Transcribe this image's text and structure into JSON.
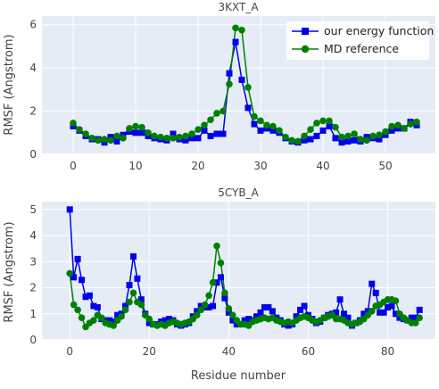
{
  "chart_data": [
    {
      "type": "line",
      "title": "3KXT_A",
      "xlabel": "",
      "ylabel": "RMSF (Angstrom)",
      "xlim": [
        -5,
        58
      ],
      "ylim": [
        0,
        6.4
      ],
      "xticks": [
        0,
        10,
        20,
        30,
        40,
        50
      ],
      "yticks": [
        0,
        2,
        4,
        6
      ],
      "grid": true,
      "legend_position": "top-right",
      "legend": [
        "our energy function",
        "MD reference"
      ],
      "series": [
        {
          "name": "our energy function",
          "color": "#0000ee",
          "marker": "square",
          "x": [
            0,
            1,
            2,
            3,
            4,
            5,
            6,
            7,
            8,
            9,
            10,
            11,
            12,
            13,
            14,
            15,
            16,
            17,
            18,
            19,
            20,
            21,
            22,
            23,
            24,
            25,
            26,
            27,
            28,
            29,
            30,
            31,
            32,
            33,
            34,
            35,
            36,
            37,
            38,
            39,
            40,
            41,
            42,
            43,
            44,
            45,
            46,
            47,
            48,
            49,
            50,
            51,
            52,
            53,
            54,
            55
          ],
          "y": [
            1.3,
            1.1,
            0.85,
            0.7,
            0.7,
            0.55,
            0.8,
            0.6,
            0.9,
            1.05,
            1.0,
            1.0,
            0.85,
            0.75,
            0.7,
            0.65,
            0.95,
            0.7,
            0.65,
            0.75,
            0.75,
            1.1,
            0.85,
            0.95,
            0.95,
            3.75,
            5.2,
            3.45,
            2.15,
            1.4,
            1.1,
            1.2,
            1.1,
            1.0,
            0.75,
            0.6,
            0.55,
            0.65,
            0.7,
            0.85,
            1.1,
            1.3,
            0.75,
            0.55,
            0.6,
            0.65,
            0.6,
            0.8,
            0.75,
            0.7,
            0.9,
            1.1,
            1.2,
            1.2,
            1.5,
            1.35
          ]
        },
        {
          "name": "MD reference",
          "color": "#008000",
          "marker": "circle",
          "x": [
            0,
            1,
            2,
            3,
            4,
            5,
            6,
            7,
            8,
            9,
            10,
            11,
            12,
            13,
            14,
            15,
            16,
            17,
            18,
            19,
            20,
            21,
            22,
            23,
            24,
            25,
            26,
            27,
            28,
            29,
            30,
            31,
            32,
            33,
            34,
            35,
            36,
            37,
            38,
            39,
            40,
            41,
            42,
            43,
            44,
            45,
            46,
            47,
            48,
            49,
            50,
            51,
            52,
            53,
            54,
            55
          ],
          "y": [
            1.45,
            1.15,
            0.95,
            0.75,
            0.65,
            0.7,
            0.65,
            0.85,
            0.75,
            1.2,
            1.3,
            1.25,
            1.0,
            0.85,
            0.8,
            0.75,
            0.75,
            0.8,
            0.85,
            0.95,
            1.15,
            1.35,
            1.6,
            1.9,
            2.0,
            3.25,
            5.85,
            5.75,
            3.1,
            1.75,
            1.55,
            1.35,
            1.3,
            1.1,
            0.8,
            0.65,
            0.6,
            0.85,
            1.15,
            1.45,
            1.55,
            1.55,
            1.25,
            0.8,
            0.85,
            0.95,
            0.7,
            0.65,
            0.85,
            0.9,
            1.05,
            1.3,
            1.35,
            1.2,
            1.4,
            1.5
          ]
        }
      ]
    },
    {
      "type": "line",
      "title": "5CYB_A",
      "xlabel": "Residue number",
      "ylabel": "RMSF (Angstrom)",
      "xlim": [
        -7,
        92
      ],
      "ylim": [
        0,
        5.3
      ],
      "xticks": [
        0,
        20,
        40,
        60,
        80
      ],
      "yticks": [
        0,
        1,
        2,
        3,
        4,
        5
      ],
      "grid": true,
      "series": [
        {
          "name": "our energy function",
          "color": "#0000ee",
          "marker": "square",
          "x": [
            0,
            1,
            2,
            3,
            4,
            5,
            6,
            7,
            8,
            9,
            10,
            11,
            12,
            13,
            14,
            15,
            16,
            17,
            18,
            19,
            20,
            21,
            22,
            23,
            24,
            25,
            26,
            27,
            28,
            29,
            30,
            31,
            32,
            33,
            34,
            35,
            36,
            37,
            38,
            39,
            40,
            41,
            42,
            43,
            44,
            45,
            46,
            47,
            48,
            49,
            50,
            51,
            52,
            53,
            54,
            55,
            56,
            57,
            58,
            59,
            60,
            61,
            62,
            63,
            64,
            65,
            66,
            67,
            68,
            69,
            70,
            71,
            72,
            73,
            74,
            75,
            76,
            77,
            78,
            79,
            80,
            81,
            82,
            83,
            84,
            85,
            86,
            87,
            88
          ],
          "y": [
            5.0,
            2.4,
            3.1,
            2.3,
            1.65,
            1.7,
            1.3,
            1.25,
            0.8,
            0.75,
            0.75,
            0.7,
            0.95,
            1.0,
            1.3,
            2.1,
            3.2,
            2.35,
            1.55,
            1.0,
            0.65,
            0.6,
            0.6,
            0.7,
            0.75,
            0.8,
            0.75,
            0.6,
            0.55,
            0.6,
            0.65,
            0.9,
            1.1,
            1.3,
            1.25,
            1.25,
            1.3,
            2.2,
            2.4,
            1.6,
            1.05,
            0.75,
            0.6,
            0.6,
            0.75,
            0.8,
            0.75,
            0.9,
            1.05,
            1.25,
            1.25,
            1.1,
            0.85,
            0.75,
            0.6,
            0.55,
            0.6,
            0.9,
            1.15,
            1.3,
            0.95,
            0.8,
            0.65,
            0.7,
            0.85,
            0.95,
            1.0,
            1.05,
            1.55,
            1.0,
            0.85,
            0.55,
            0.65,
            0.75,
            1.0,
            1.1,
            2.15,
            1.8,
            1.05,
            1.05,
            1.25,
            1.3,
            1.0,
            0.85,
            0.8,
            0.75,
            0.85,
            0.85,
            1.15
          ]
        },
        {
          "name": "MD reference",
          "color": "#008000",
          "marker": "circle",
          "x": [
            0,
            1,
            2,
            3,
            4,
            5,
            6,
            7,
            8,
            9,
            10,
            11,
            12,
            13,
            14,
            15,
            16,
            17,
            18,
            19,
            20,
            21,
            22,
            23,
            24,
            25,
            26,
            27,
            28,
            29,
            30,
            31,
            32,
            33,
            34,
            35,
            36,
            37,
            38,
            39,
            40,
            41,
            42,
            43,
            44,
            45,
            46,
            47,
            48,
            49,
            50,
            51,
            52,
            53,
            54,
            55,
            56,
            57,
            58,
            59,
            60,
            61,
            62,
            63,
            64,
            65,
            66,
            67,
            68,
            69,
            70,
            71,
            72,
            73,
            74,
            75,
            76,
            77,
            78,
            79,
            80,
            81,
            82,
            83,
            84,
            85,
            86,
            87,
            88
          ],
          "y": [
            2.55,
            1.35,
            1.15,
            0.85,
            0.5,
            0.65,
            0.75,
            0.95,
            0.85,
            0.65,
            0.6,
            0.55,
            0.75,
            0.9,
            1.15,
            1.45,
            1.8,
            1.45,
            1.35,
            0.95,
            0.8,
            0.6,
            0.55,
            0.6,
            0.55,
            0.65,
            0.7,
            0.65,
            0.6,
            0.65,
            0.7,
            0.8,
            0.95,
            1.15,
            1.35,
            1.7,
            2.2,
            3.6,
            2.95,
            1.8,
            1.2,
            0.95,
            0.75,
            0.6,
            0.6,
            0.55,
            0.7,
            0.75,
            0.8,
            0.85,
            0.8,
            0.85,
            0.75,
            0.7,
            0.65,
            0.7,
            0.65,
            0.75,
            0.85,
            0.9,
            0.85,
            0.75,
            0.7,
            0.75,
            0.85,
            0.9,
            0.95,
            0.8,
            0.8,
            0.75,
            0.65,
            0.6,
            0.65,
            0.7,
            0.8,
            0.95,
            1.1,
            1.3,
            1.35,
            1.45,
            1.55,
            1.55,
            1.5,
            1.0,
            0.85,
            0.75,
            0.65,
            0.65,
            0.85
          ]
        }
      ]
    }
  ]
}
